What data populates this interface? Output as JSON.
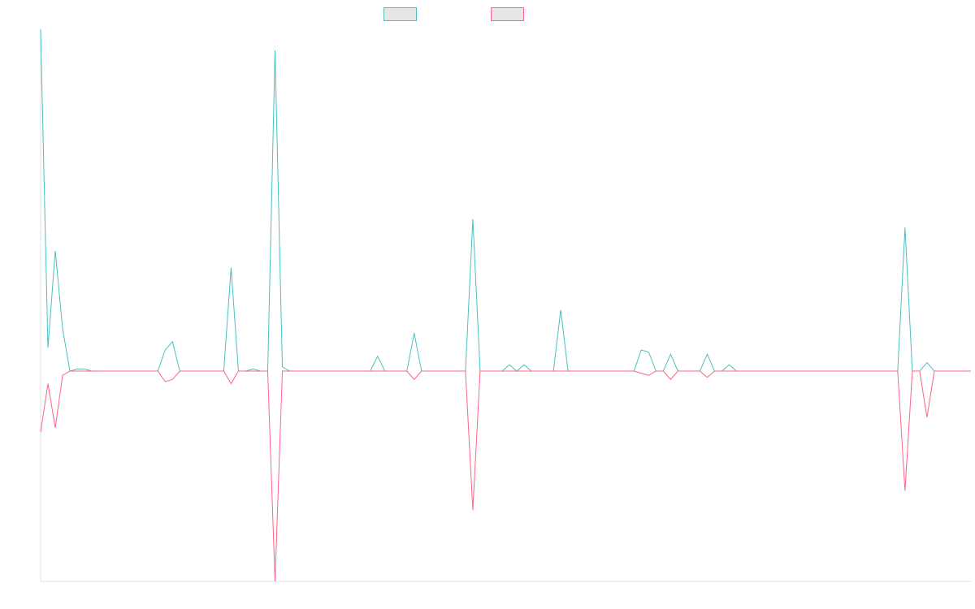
{
  "colors": {
    "series_a": "#4bc0c0",
    "series_b": "#ff6384",
    "legend_fill": "#e6e6e6",
    "axis": "#e0e0e0"
  },
  "chart_data": {
    "type": "line",
    "title": "",
    "xlabel": "",
    "ylabel": "",
    "grid": false,
    "legend_position": "top-center",
    "x_count": 128,
    "ylim": [
      -1.0,
      1.62
    ],
    "series": [
      {
        "color": "#4bc0c0",
        "values": [
          1.62,
          0.11,
          0.57,
          0.2,
          0,
          0.01,
          0.01,
          0,
          0,
          0,
          0,
          0,
          0,
          0,
          0,
          0,
          0,
          0.1,
          0.14,
          0,
          0,
          0,
          0,
          0,
          0,
          0,
          0.49,
          0,
          0,
          0.01,
          0,
          0,
          1.52,
          0.02,
          0,
          0,
          0,
          0,
          0,
          0,
          0,
          0,
          0,
          0,
          0,
          0,
          0.07,
          0,
          0,
          0,
          0,
          0.18,
          0,
          0,
          0,
          0,
          0,
          0,
          0,
          0.72,
          0,
          0,
          0,
          0,
          0.03,
          0,
          0.03,
          0,
          0,
          0,
          0,
          0.29,
          0,
          0,
          0,
          0,
          0,
          0,
          0,
          0,
          0,
          0,
          0.1,
          0.09,
          0,
          0,
          0.08,
          0,
          0,
          0,
          0,
          0.08,
          0,
          0,
          0.03,
          0,
          0,
          0,
          0,
          0,
          0,
          0,
          0,
          0,
          0,
          0,
          0,
          0,
          0,
          0,
          0,
          0,
          0,
          0,
          0,
          0,
          0,
          0,
          0.68,
          0,
          0,
          0.04,
          0,
          0,
          0,
          0,
          0,
          0
        ]
      },
      {
        "color": "#ff6384",
        "values": [
          -0.29,
          -0.06,
          -0.27,
          -0.02,
          0,
          0,
          0,
          0,
          0,
          0,
          0,
          0,
          0,
          0,
          0,
          0,
          0,
          -0.05,
          -0.04,
          0,
          0,
          0,
          0,
          0,
          0,
          0,
          -0.06,
          0,
          0,
          0,
          0,
          0,
          -1.0,
          0,
          0,
          0,
          0,
          0,
          0,
          0,
          0,
          0,
          0,
          0,
          0,
          0,
          0,
          0,
          0,
          0,
          0,
          -0.04,
          0,
          0,
          0,
          0,
          0,
          0,
          0,
          -0.66,
          0,
          0,
          0,
          0,
          0,
          0,
          0,
          0,
          0,
          0,
          0,
          0,
          0,
          0,
          0,
          0,
          0,
          0,
          0,
          0,
          0,
          0,
          -0.01,
          -0.02,
          0,
          0,
          -0.04,
          0,
          0,
          0,
          0,
          -0.03,
          0,
          0,
          0,
          0,
          0,
          0,
          0,
          0,
          0,
          0,
          0,
          0,
          0,
          0,
          0,
          0,
          0,
          0,
          0,
          0,
          0,
          0,
          0,
          0,
          0,
          0,
          -0.57,
          0,
          0,
          -0.22,
          0,
          0,
          0,
          0,
          0,
          0
        ]
      }
    ]
  }
}
